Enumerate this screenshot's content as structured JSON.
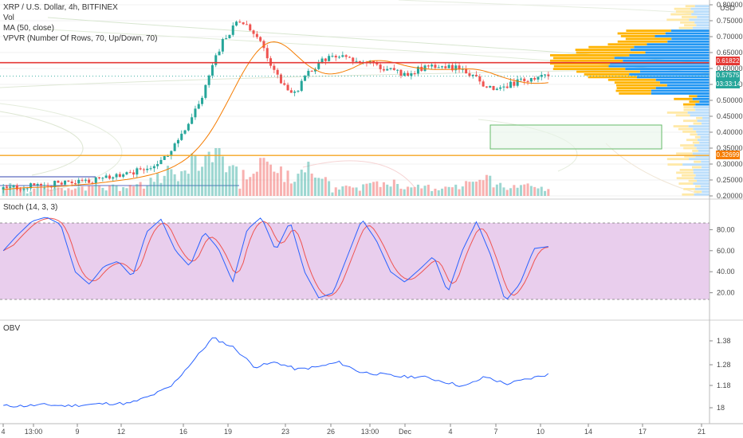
{
  "header": {
    "symbol": "XRP / U.S. Dollar, 4h, BITFINEX",
    "vol": "Vol",
    "ma": "MA (50, close)",
    "vpvr": "VPVR (Number Of Rows, 70, Up/Down, 70)"
  },
  "price_axis": {
    "currency": "USD",
    "ticks": [
      "0.80000",
      "0.75000",
      "0.70000",
      "0.65000",
      "0.60000",
      "0.55000",
      "0.50000",
      "0.45000",
      "0.40000",
      "0.35000",
      "0.30000",
      "0.25000",
      "0.20000"
    ],
    "tags": [
      {
        "label": "0.61822",
        "color": "#e53935"
      },
      {
        "label": "0.57575",
        "color": "#26a69a"
      },
      {
        "label": "03:33:14",
        "color": "#26a69a"
      },
      {
        "label": "0.32699",
        "color": "#f57c00"
      }
    ]
  },
  "stoch": {
    "label": "Stoch (14, 3, 3)",
    "ticks": [
      "80.00",
      "60.00",
      "40.00",
      "20.00"
    ]
  },
  "obv": {
    "label": "OBV",
    "ticks": [
      "1.38",
      "1.28",
      "1.18",
      "18"
    ]
  },
  "time_axis": {
    "labels": [
      "4",
      "13:00",
      "9",
      "12",
      "16",
      "19",
      "23",
      "26",
      "13:00",
      "Dec",
      "4",
      "7",
      "10",
      "14",
      "17",
      "21"
    ]
  },
  "colors": {
    "up": "#26a69a",
    "down": "#ef5350",
    "ma": "#f57c00",
    "stoch_k": "#2962ff",
    "stoch_d": "#ef5350",
    "stoch_band": "#e1bee7",
    "obv_line": "#2962ff",
    "resistance": "#e53935",
    "support": "#f5a623"
  },
  "chart_data": [
    {
      "type": "candlestick",
      "title": "XRP / U.S. Dollar, 4h, BITFINEX",
      "ylim": [
        0.2,
        0.8
      ],
      "ylabel": "USD",
      "x": [
        "4",
        "13:00",
        "9",
        "12",
        "16",
        "19",
        "23",
        "26",
        "13:00",
        "Dec",
        "4",
        "7",
        "10"
      ],
      "close_path": [
        0.22,
        0.23,
        0.23,
        0.24,
        0.24,
        0.25,
        0.26,
        0.27,
        0.29,
        0.33,
        0.4,
        0.52,
        0.68,
        0.75,
        0.7,
        0.58,
        0.52,
        0.6,
        0.64,
        0.63,
        0.62,
        0.6,
        0.58,
        0.6,
        0.61,
        0.6,
        0.57,
        0.53,
        0.55,
        0.57,
        0.576
      ],
      "horizontal_levels": [
        0.61822,
        0.32699
      ],
      "last_price": 0.57575
    },
    {
      "type": "line",
      "title": "Stoch (14, 3, 3)",
      "ylim": [
        0,
        100
      ],
      "bands": [
        20,
        80
      ],
      "k_path": [
        60,
        75,
        88,
        92,
        85,
        40,
        28,
        45,
        50,
        35,
        78,
        90,
        60,
        45,
        78,
        62,
        30,
        80,
        92,
        60,
        88,
        40,
        15,
        20,
        55,
        90,
        70,
        40,
        30,
        42,
        55,
        20,
        60,
        88,
        55,
        12,
        28,
        62,
        64
      ]
    },
    {
      "type": "line",
      "title": "OBV",
      "y_ticks": [
        "1.38",
        "1.28",
        "1.18",
        "18"
      ],
      "y_path": [
        1.12,
        1.12,
        1.125,
        1.12,
        1.125,
        1.13,
        1.13,
        1.16,
        1.2,
        1.3,
        1.4,
        1.36,
        1.28,
        1.3,
        1.27,
        1.28,
        1.3,
        1.26,
        1.25,
        1.24,
        1.24,
        1.22,
        1.2,
        1.24,
        1.21,
        1.23,
        1.25
      ]
    }
  ]
}
